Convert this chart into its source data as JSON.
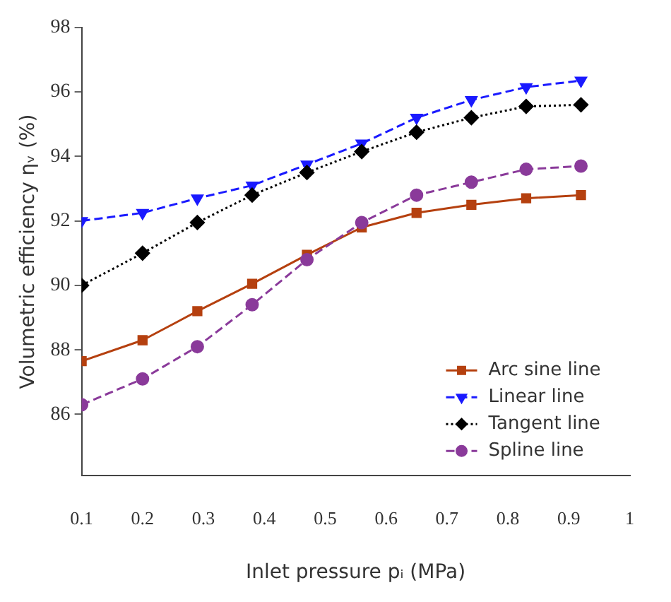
{
  "chart_data": {
    "type": "line",
    "xlabel": "Inlet pressure pᵢ (MPa)",
    "ylabel": "Volumetric efficiency ηᵥ (%)",
    "x": [
      0.1,
      0.2,
      0.29,
      0.38,
      0.47,
      0.56,
      0.65,
      0.74,
      0.83,
      0.92
    ],
    "xlim": [
      0.1,
      1
    ],
    "xticks": [
      0.1,
      0.2,
      0.3,
      0.4,
      0.5,
      0.6,
      0.7,
      0.8,
      0.9,
      1
    ],
    "ylim": [
      84.1,
      98
    ],
    "yticks": [
      86,
      88,
      90,
      92,
      94,
      96,
      98
    ],
    "grid": false,
    "legend": "bottom right",
    "series": [
      {
        "name": "Arc sine line",
        "color": "#b5400f",
        "marker": "square",
        "line_style": "solid",
        "values": [
          87.65,
          88.3,
          89.2,
          90.05,
          90.95,
          91.8,
          92.25,
          92.5,
          92.7,
          92.8
        ]
      },
      {
        "name": "Linear line",
        "color": "#1a1aff",
        "marker": "triangle",
        "line_style": "dashed",
        "values": [
          92.0,
          92.25,
          92.7,
          93.1,
          93.75,
          94.4,
          95.2,
          95.75,
          96.15,
          96.35
        ]
      },
      {
        "name": "Tangent line",
        "color": "#000000",
        "marker": "diamond",
        "line_style": "dotted",
        "values": [
          90.0,
          91.0,
          91.95,
          92.8,
          93.5,
          94.15,
          94.75,
          95.2,
          95.55,
          95.6
        ]
      },
      {
        "name": "Spline line",
        "color": "#8a3a9a",
        "marker": "circle",
        "line_style": "dashed",
        "values": [
          86.3,
          87.1,
          88.1,
          89.4,
          90.8,
          91.95,
          92.8,
          93.2,
          93.6,
          93.7
        ]
      }
    ]
  }
}
